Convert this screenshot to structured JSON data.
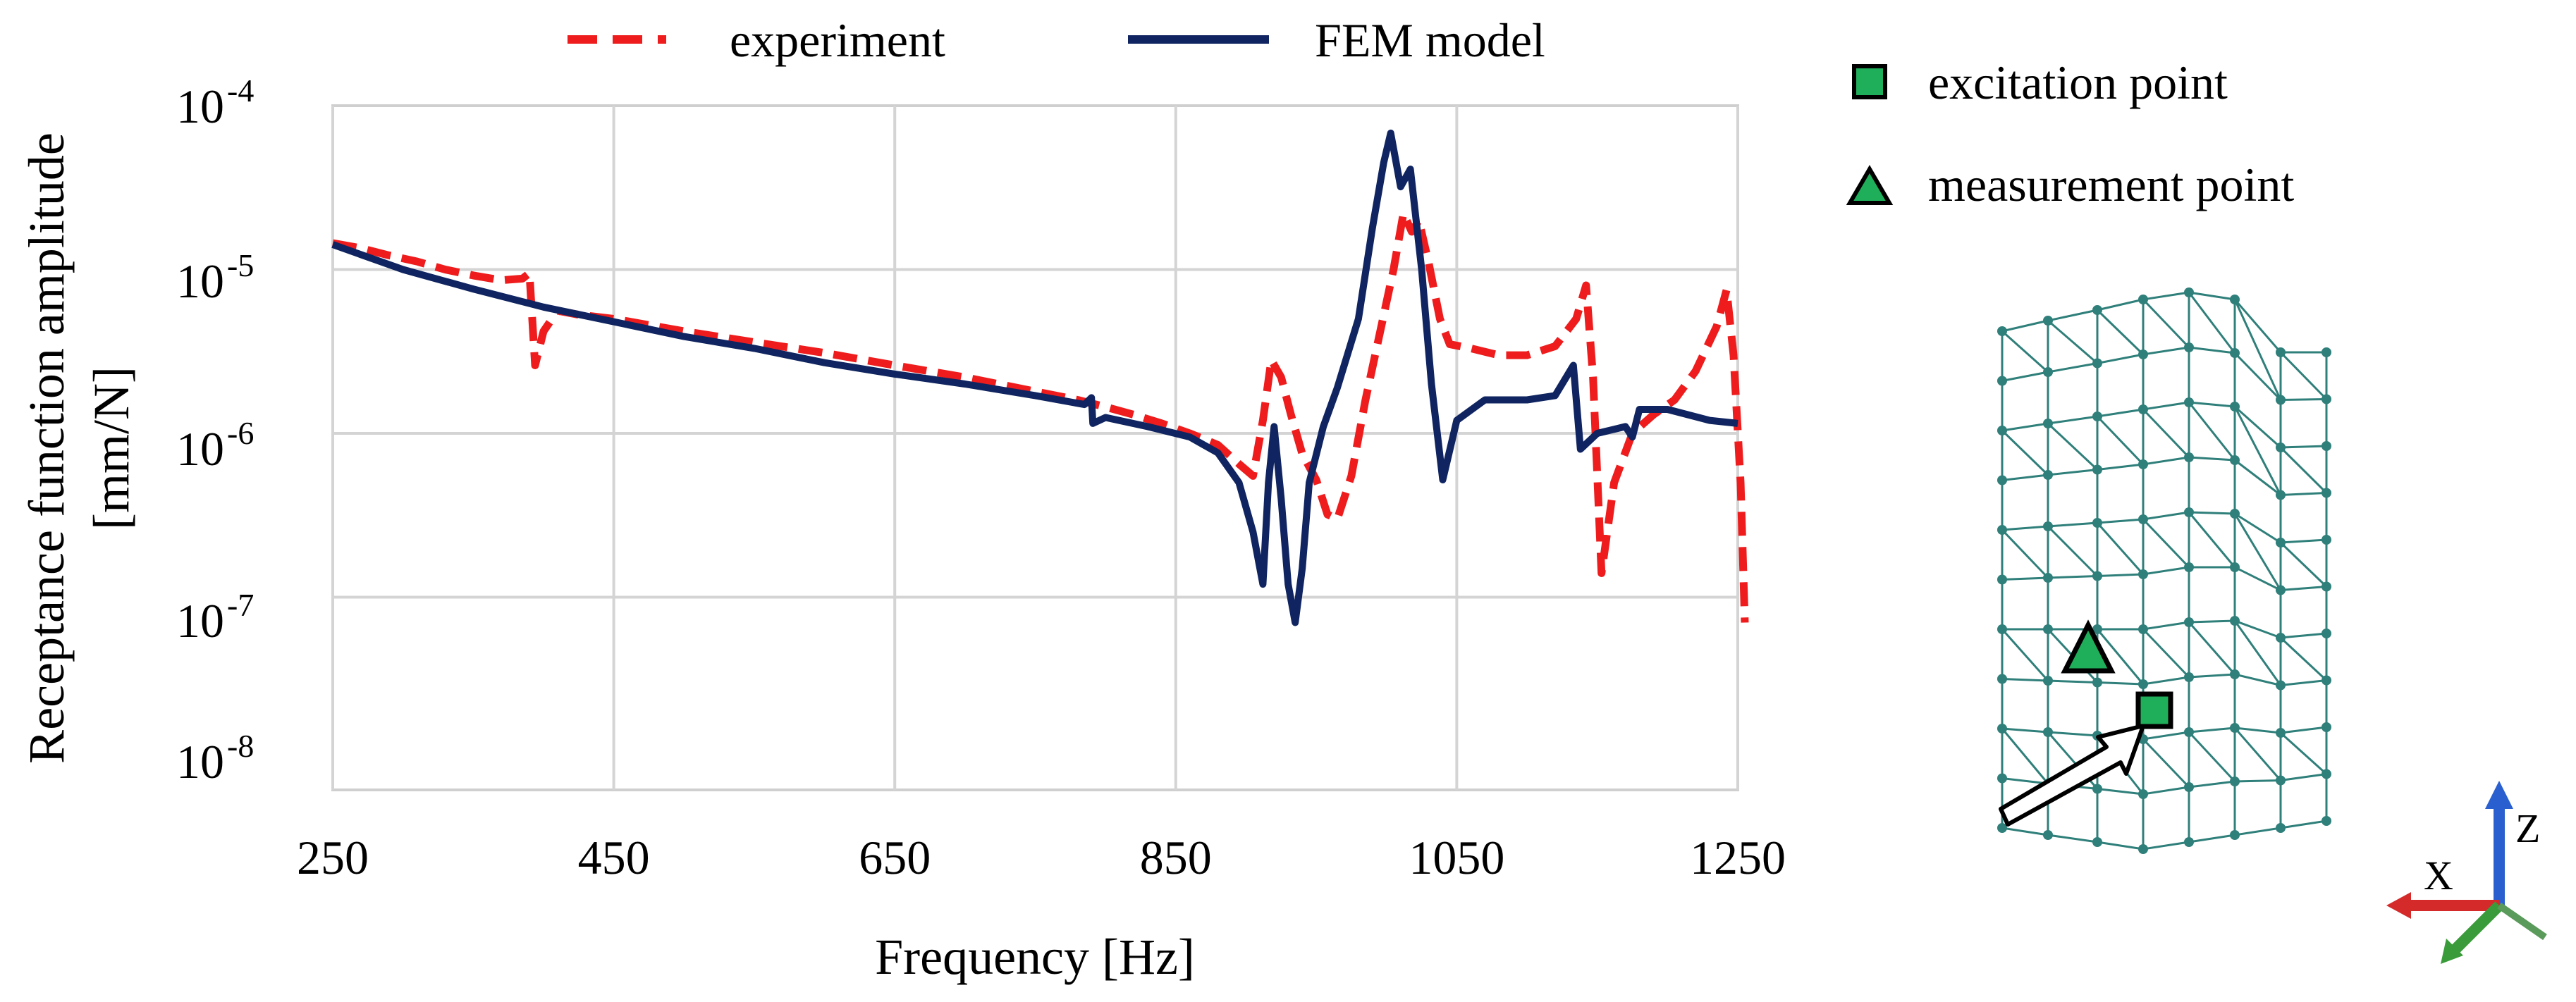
{
  "chart_data": {
    "type": "line",
    "title": "",
    "xlabel": "Frequency [Hz]",
    "ylabel": [
      "Receptance function amplitude",
      "[mm/N]"
    ],
    "xscale": "linear",
    "yscale": "log",
    "xlim": [
      250,
      1250
    ],
    "ylim": [
      1e-08,
      0.0001
    ],
    "grid": true,
    "legend_position": "top",
    "x_ticks": [
      "250",
      "450",
      "650",
      "850",
      "1050",
      "1250"
    ],
    "y_ticks": [
      {
        "base": "10",
        "exp": "-4"
      },
      {
        "base": "10",
        "exp": "-5"
      },
      {
        "base": "10",
        "exp": "-6"
      },
      {
        "base": "10",
        "exp": "-7"
      },
      {
        "base": "10",
        "exp": "-8"
      }
    ],
    "series": [
      {
        "name": "experiment",
        "color": "#ee1c1c",
        "style": "dashed",
        "points": [
          [
            250,
            1.45e-05
          ],
          [
            270,
            1.35e-05
          ],
          [
            290,
            1.22e-05
          ],
          [
            310,
            1.12e-05
          ],
          [
            330,
            1e-05
          ],
          [
            350,
            9.2e-06
          ],
          [
            370,
            8.6e-06
          ],
          [
            385,
            8.8e-06
          ],
          [
            390,
            9.5e-06
          ],
          [
            394,
            2.6e-06
          ],
          [
            400,
            4.2e-06
          ],
          [
            410,
            5.6e-06
          ],
          [
            425,
            5.3e-06
          ],
          [
            450,
            5e-06
          ],
          [
            500,
            4.2e-06
          ],
          [
            550,
            3.6e-06
          ],
          [
            600,
            3.1e-06
          ],
          [
            650,
            2.6e-06
          ],
          [
            700,
            2.2e-06
          ],
          [
            750,
            1.8e-06
          ],
          [
            780,
            1.6e-06
          ],
          [
            800,
            1.45e-06
          ],
          [
            820,
            1.3e-06
          ],
          [
            840,
            1.15e-06
          ],
          [
            860,
            1e-06
          ],
          [
            880,
            8.5e-07
          ],
          [
            895,
            6.5e-07
          ],
          [
            905,
            5.5e-07
          ],
          [
            912,
            1.2e-06
          ],
          [
            918,
            2.8e-06
          ],
          [
            925,
            2.2e-06
          ],
          [
            932,
            1.3e-06
          ],
          [
            940,
            7.5e-07
          ],
          [
            950,
            5.2e-07
          ],
          [
            958,
            3.2e-07
          ],
          [
            965,
            3e-07
          ],
          [
            975,
            5.5e-07
          ],
          [
            985,
            1.6e-06
          ],
          [
            995,
            4e-06
          ],
          [
            1005,
            1e-05
          ],
          [
            1012,
            2.2e-05
          ],
          [
            1018,
            1.7e-05
          ],
          [
            1023,
            2e-05
          ],
          [
            1030,
            1.1e-05
          ],
          [
            1038,
            5e-06
          ],
          [
            1045,
            3.5e-06
          ],
          [
            1060,
            3.3e-06
          ],
          [
            1080,
            3e-06
          ],
          [
            1100,
            3e-06
          ],
          [
            1120,
            3.4e-06
          ],
          [
            1135,
            5e-06
          ],
          [
            1142,
            8e-06
          ],
          [
            1147,
            2.2e-06
          ],
          [
            1153,
            1.4e-07
          ],
          [
            1162,
            5e-07
          ],
          [
            1175,
            1e-06
          ],
          [
            1190,
            1.3e-06
          ],
          [
            1205,
            1.6e-06
          ],
          [
            1220,
            2.4e-06
          ],
          [
            1235,
            4.5e-06
          ],
          [
            1242,
            7.5e-06
          ],
          [
            1247,
            3e-06
          ],
          [
            1252,
            5e-07
          ],
          [
            1255,
            7e-08
          ]
        ]
      },
      {
        "name": "FEM model",
        "color": "#0f2460",
        "style": "solid",
        "points": [
          [
            250,
            1.42e-05
          ],
          [
            300,
            1e-05
          ],
          [
            350,
            7.6e-06
          ],
          [
            400,
            5.9e-06
          ],
          [
            450,
            4.8e-06
          ],
          [
            500,
            3.9e-06
          ],
          [
            550,
            3.3e-06
          ],
          [
            600,
            2.7e-06
          ],
          [
            650,
            2.3e-06
          ],
          [
            700,
            2e-06
          ],
          [
            750,
            1.7e-06
          ],
          [
            785,
            1.5e-06
          ],
          [
            790,
            1.65e-06
          ],
          [
            791,
            1.15e-06
          ],
          [
            800,
            1.25e-06
          ],
          [
            830,
            1.1e-06
          ],
          [
            860,
            9.5e-07
          ],
          [
            880,
            7.6e-07
          ],
          [
            895,
            5e-07
          ],
          [
            905,
            2.5e-07
          ],
          [
            912,
            1.2e-07
          ],
          [
            916,
            5e-07
          ],
          [
            920,
            1.1e-06
          ],
          [
            925,
            4e-07
          ],
          [
            930,
            1.2e-07
          ],
          [
            935,
            7e-08
          ],
          [
            940,
            1.5e-07
          ],
          [
            945,
            5e-07
          ],
          [
            955,
            1.1e-06
          ],
          [
            965,
            1.9e-06
          ],
          [
            980,
            5e-06
          ],
          [
            990,
            1.8e-05
          ],
          [
            998,
            4.5e-05
          ],
          [
            1003,
            6.8e-05
          ],
          [
            1010,
            3.2e-05
          ],
          [
            1017,
            4.1e-05
          ],
          [
            1025,
            1e-05
          ],
          [
            1032,
            2e-06
          ],
          [
            1040,
            5.2e-07
          ],
          [
            1050,
            1.2e-06
          ],
          [
            1070,
            1.6e-06
          ],
          [
            1100,
            1.6e-06
          ],
          [
            1120,
            1.7e-06
          ],
          [
            1133,
            2.6e-06
          ],
          [
            1138,
            8e-07
          ],
          [
            1150,
            1e-06
          ],
          [
            1170,
            1.1e-06
          ],
          [
            1175,
            9.5e-07
          ],
          [
            1180,
            1.4e-06
          ],
          [
            1200,
            1.4e-06
          ],
          [
            1230,
            1.2e-06
          ],
          [
            1250,
            1.15e-06
          ]
        ]
      }
    ]
  },
  "inset_legend": {
    "excitation_label": "excitation point",
    "measurement_label": "measurement point",
    "marker_color": "#1fae5a"
  },
  "axes_triad": {
    "x_label": "X",
    "z_label": "Z",
    "x_color": "#d42a2a",
    "y_color": "#3a9b3a",
    "z_color": "#2a5fcf"
  }
}
